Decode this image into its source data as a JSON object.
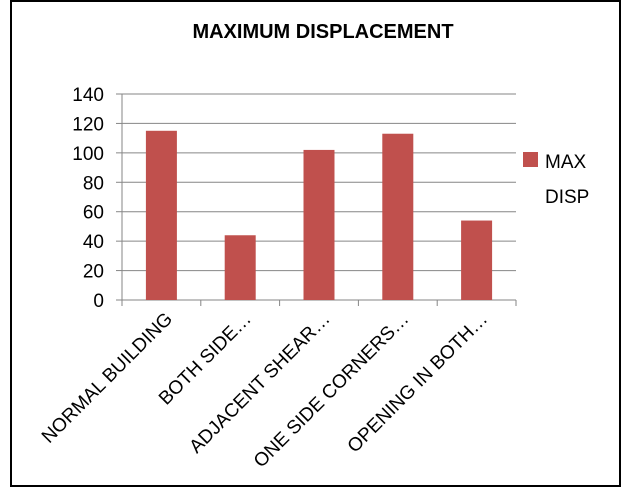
{
  "chart_data": {
    "type": "bar",
    "title": "MAXIMUM DISPLACEMENT",
    "xlabel": "",
    "ylabel": "",
    "categories": [
      "NORMAL BUILDING",
      "BOTH SIDE…",
      "ADJACENT SHEAR…",
      "ONE SIDE CORNERS…",
      "OPENING IN BOTH…"
    ],
    "series": [
      {
        "name": "MAX DISP",
        "values": [
          115,
          44,
          102,
          113,
          54
        ],
        "color": "#c0504d"
      }
    ],
    "yticks": [
      "0",
      "20",
      "40",
      "60",
      "80",
      "100",
      "120",
      "140"
    ],
    "ylim": [
      0,
      140
    ],
    "grid": true,
    "legend_position": "right",
    "legend_lines": [
      "MAX",
      "DISP"
    ]
  }
}
